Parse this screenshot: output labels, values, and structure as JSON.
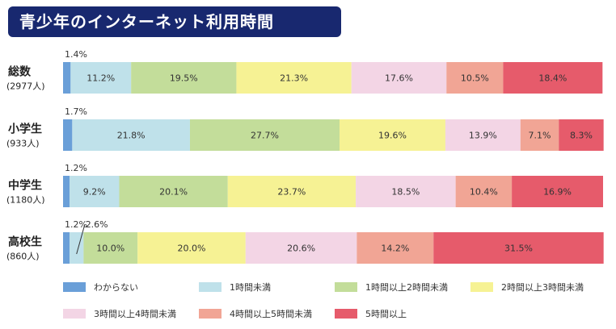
{
  "title": "青少年のインターネット利用時間",
  "chart_data": {
    "type": "bar",
    "orientation": "horizontal-stacked-100",
    "unit": "%",
    "categories": [
      {
        "name": "総数",
        "sub": "(2977人)"
      },
      {
        "name": "小学生",
        "sub": "(933人)"
      },
      {
        "name": "中学生",
        "sub": "(1180人)"
      },
      {
        "name": "高校生",
        "sub": "(860人)"
      }
    ],
    "series": [
      {
        "name": "わからない",
        "color": "#6a9fd8",
        "values": [
          1.4,
          1.7,
          1.2,
          1.2
        ]
      },
      {
        "name": "1時間未満",
        "color": "#bfe1ea",
        "values": [
          11.2,
          21.8,
          9.2,
          2.6
        ]
      },
      {
        "name": "1時間以上2時間未満",
        "color": "#c3dd9a",
        "values": [
          19.5,
          27.7,
          20.1,
          10.0
        ]
      },
      {
        "name": "2時間以上3時間未満",
        "color": "#f6f294",
        "values": [
          21.3,
          19.6,
          23.7,
          20.0
        ]
      },
      {
        "name": "3時間以上4時間未満",
        "color": "#f3d5e5",
        "values": [
          17.6,
          13.9,
          18.5,
          20.6
        ]
      },
      {
        "name": "4時間以上5時間未満",
        "color": "#f1a595",
        "values": [
          10.5,
          7.1,
          10.4,
          14.2
        ]
      },
      {
        "name": "5時間以上",
        "color": "#e65b6b",
        "values": [
          18.4,
          8.3,
          16.9,
          31.5
        ]
      }
    ],
    "value_labels": [
      [
        "1.4%",
        "11.2%",
        "19.5%",
        "21.3%",
        "17.6%",
        "10.5%",
        "18.4%"
      ],
      [
        "1.7%",
        "21.8%",
        "27.7%",
        "19.6%",
        "13.9%",
        "7.1%",
        "8.3%"
      ],
      [
        "1.2%",
        "9.2%",
        "20.1%",
        "23.7%",
        "18.5%",
        "10.4%",
        "16.9%"
      ],
      [
        "1.2%",
        "2.6%",
        "10.0%",
        "20.0%",
        "20.6%",
        "14.2%",
        "31.5%"
      ]
    ],
    "xlim": [
      0,
      100
    ],
    "legend_position": "bottom"
  }
}
